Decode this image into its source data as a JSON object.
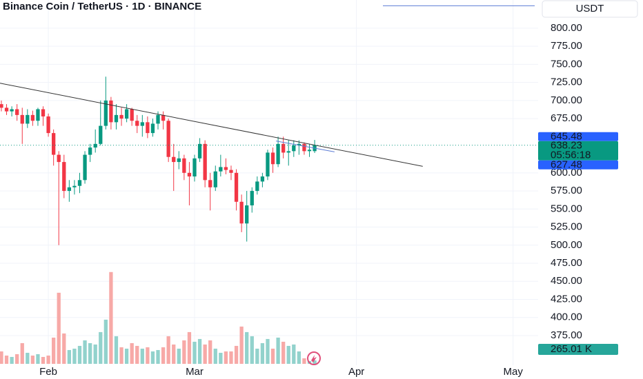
{
  "chart_data": {
    "type": "candlestick",
    "title": "Binance Coin / TetherUS · 1D · BINANCE",
    "currency": "USDT",
    "open": [
      695,
      690,
      685,
      688,
      680,
      668,
      680,
      672,
      688,
      678,
      655,
      625,
      615,
      575,
      580,
      582,
      590,
      625,
      635,
      640,
      665,
      700,
      670,
      680,
      675,
      688,
      672,
      665,
      670,
      655,
      668,
      680,
      672,
      622,
      615,
      620,
      600,
      595,
      620,
      640,
      590,
      580,
      602,
      608,
      604,
      600,
      560,
      530,
      555,
      575,
      588,
      595,
      628,
      612,
      640,
      628,
      630,
      638,
      640,
      630,
      630
    ],
    "high": [
      700,
      695,
      692,
      695,
      690,
      688,
      686,
      690,
      692,
      682,
      660,
      630,
      625,
      590,
      590,
      600,
      630,
      640,
      660,
      700,
      733,
      705,
      695,
      690,
      695,
      690,
      680,
      680,
      678,
      675,
      685,
      685,
      675,
      640,
      630,
      625,
      615,
      625,
      648,
      645,
      600,
      610,
      625,
      620,
      610,
      605,
      570,
      575,
      580,
      595,
      600,
      632,
      635,
      650,
      650,
      645,
      645,
      645,
      642,
      640,
      645.48
    ],
    "low": [
      685,
      680,
      678,
      672,
      640,
      662,
      665,
      665,
      665,
      650,
      610,
      500,
      565,
      560,
      570,
      572,
      585,
      615,
      628,
      638,
      660,
      660,
      660,
      665,
      670,
      665,
      655,
      650,
      648,
      650,
      660,
      660,
      615,
      575,
      605,
      590,
      555,
      588,
      615,
      580,
      548,
      575,
      595,
      598,
      590,
      548,
      518,
      505,
      545,
      570,
      580,
      590,
      600,
      608,
      620,
      610,
      622,
      625,
      625,
      622,
      627.48
    ],
    "close": [
      690,
      685,
      688,
      680,
      668,
      680,
      672,
      688,
      678,
      655,
      625,
      615,
      575,
      580,
      582,
      590,
      625,
      635,
      640,
      665,
      700,
      670,
      680,
      675,
      688,
      672,
      665,
      670,
      655,
      668,
      680,
      672,
      622,
      615,
      620,
      600,
      595,
      620,
      640,
      590,
      580,
      602,
      608,
      604,
      600,
      560,
      530,
      555,
      575,
      588,
      595,
      628,
      612,
      640,
      628,
      630,
      638,
      640,
      630,
      632,
      638.23
    ],
    "volume": [
      954,
      636,
      530,
      742,
      1590,
      848,
      636,
      742,
      530,
      636,
      2014,
      5459,
      2332,
      1060,
      1166,
      1378,
      1802,
      1590,
      1484,
      2438,
      3392,
      7049,
      2120,
      1272,
      1166,
      1590,
      1378,
      1166,
      1272,
      954,
      1060,
      1272,
      2120,
      1484,
      1166,
      1802,
      2438,
      1696,
      1908,
      1484,
      1802,
      1166,
      848,
      954,
      954,
      1378,
      2862,
      2438,
      2120,
      1166,
      1590,
      1908,
      1166,
      2014,
      1696,
      1378,
      1484,
      954,
      424,
      212,
      265.01
    ],
    "volume_label": "265.01 K",
    "countdown": "05:56:18",
    "up_color": "#089981",
    "down_color": "#f23645",
    "up_volume_color": "#92d2cc",
    "down_volume_color": "#f7a9a7",
    "xlim": [
      -0.26,
      102.8
    ],
    "xticks": [
      {
        "value": 9,
        "label": "Feb"
      },
      {
        "value": 37,
        "label": "Mar"
      },
      {
        "value": 68,
        "label": "Apr"
      },
      {
        "value": 98,
        "label": "May"
      }
    ],
    "ylim": [
      334,
      839
    ],
    "yticks": [
      {
        "value": 800,
        "label": "800.00"
      },
      {
        "value": 775,
        "label": "775.00"
      },
      {
        "value": 750,
        "label": "750.00"
      },
      {
        "value": 725,
        "label": "725.00"
      },
      {
        "value": 700,
        "label": "700.00"
      },
      {
        "value": 675,
        "label": "675.00"
      },
      {
        "value": 600,
        "label": "600.00"
      },
      {
        "value": 575,
        "label": "575.00"
      },
      {
        "value": 550,
        "label": "550.00"
      },
      {
        "value": 525,
        "label": "525.00"
      },
      {
        "value": 500,
        "label": "500.00"
      },
      {
        "value": 475,
        "label": "475.00"
      },
      {
        "value": 450,
        "label": "450.00"
      },
      {
        "value": 425,
        "label": "425.00"
      },
      {
        "value": 400,
        "label": "400.00"
      },
      {
        "value": 375,
        "label": "375.00"
      }
    ],
    "volume_lim": [
      0,
      10000
    ],
    "trendline": {
      "x": [
        -0.26,
        80.7
      ],
      "y": [
        724,
        609
      ]
    },
    "channel_line": {
      "x": [
        52.6,
        63.8
      ],
      "y": [
        644,
        629
      ]
    },
    "hline": 831,
    "grid": true
  }
}
